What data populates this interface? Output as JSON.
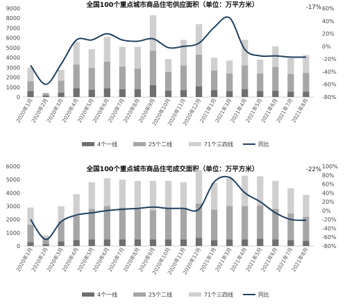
{
  "chart_data": [
    {
      "type": "bar",
      "stacked": true,
      "title": "全国100个重点城市商品住宅供应面积（单位：万平方米）",
      "categories": [
        "2020年1月",
        "2020年2月",
        "2020年3月",
        "2020年4月",
        "2020年5月",
        "2020年6月",
        "2020年7月",
        "2020年8月",
        "2020年9月",
        "2020年10月",
        "2020年11月",
        "2020年12月",
        "2021年1月",
        "2021年3月",
        "2021年4月",
        "2021年5月",
        "2021年6月",
        "2021年7月",
        "2021年8月"
      ],
      "ylim": [
        0,
        9000
      ],
      "yticks": [
        0,
        1000,
        2000,
        3000,
        4000,
        5000,
        6000,
        7000,
        8000,
        9000
      ],
      "y2lim": [
        -80,
        60
      ],
      "y2ticks": [
        -80,
        -60,
        -40,
        -20,
        0,
        20,
        40,
        60
      ],
      "y2_format": "percent",
      "series": [
        {
          "name": "4个一线",
          "kind": "bar",
          "color": "#6f6f6f",
          "values": [
            600,
            150,
            450,
            900,
            750,
            900,
            800,
            800,
            1200,
            650,
            700,
            1100,
            700,
            600,
            800,
            600,
            650,
            550,
            550
          ]
        },
        {
          "name": "25个二线",
          "kind": "bar",
          "color": "#a6a6a6",
          "values": [
            1000,
            250,
            1200,
            2400,
            2200,
            2700,
            2300,
            2100,
            3500,
            1900,
            2500,
            3200,
            2000,
            1800,
            2400,
            1800,
            2400,
            1800,
            1900
          ]
        },
        {
          "name": "71个三四线",
          "kind": "bar",
          "color": "#cfcfcf",
          "values": [
            1400,
            0,
            1100,
            2300,
            1900,
            2500,
            2000,
            2200,
            3600,
            1300,
            2600,
            3100,
            1300,
            1300,
            2600,
            1400,
            2100,
            1600,
            1800
          ]
        },
        {
          "name": "同比",
          "kind": "line",
          "axis": "right",
          "color": "#1f3e5e",
          "values": [
            -30,
            -60,
            -28,
            10,
            10,
            20,
            10,
            8,
            12,
            -2,
            0,
            5,
            30,
            45,
            -5,
            -15,
            -15,
            -17,
            -17
          ]
        }
      ],
      "annotations": [
        {
          "text": "-17%"
        }
      ]
    },
    {
      "type": "bar",
      "stacked": true,
      "title": "全国100个重点城市商品住宅成交面积（单位：万平方米）",
      "categories": [
        "2020年1月",
        "2020年2月",
        "2020年3月",
        "2020年4月",
        "2020年5月",
        "2020年6月",
        "2020年7月",
        "2020年8月",
        "2020年9月",
        "2020年10月",
        "2020年11月",
        "2020年12月",
        "2021年1月",
        "2021年3月",
        "2021年4月",
        "2021年5月",
        "2021年6月",
        "2021年7月",
        "2021年8月"
      ],
      "ylim": [
        0,
        6000
      ],
      "yticks": [
        0,
        1000,
        2000,
        3000,
        4000,
        5000,
        6000
      ],
      "y2lim": [
        -80,
        100
      ],
      "y2ticks": [
        -80,
        -60,
        -40,
        -20,
        0,
        20,
        40,
        60,
        80,
        100
      ],
      "y2_format": "percent",
      "series": [
        {
          "name": "4个一线",
          "kind": "bar",
          "color": "#6f6f6f",
          "values": [
            300,
            150,
            350,
            450,
            500,
            500,
            500,
            500,
            500,
            500,
            500,
            600,
            450,
            500,
            500,
            550,
            500,
            450,
            400
          ]
        },
        {
          "name": "25个二线",
          "kind": "bar",
          "color": "#a6a6a6",
          "values": [
            1300,
            400,
            1500,
            1800,
            2300,
            2500,
            2400,
            2300,
            2200,
            2300,
            2300,
            2600,
            2300,
            2500,
            2500,
            2500,
            2300,
            2000,
            1800
          ]
        },
        {
          "name": "71个三四线",
          "kind": "bar",
          "color": "#cfcfcf",
          "values": [
            1300,
            250,
            1150,
            1650,
            2000,
            2100,
            2100,
            2100,
            2200,
            2100,
            2000,
            2500,
            2000,
            2100,
            2300,
            2200,
            2100,
            1900,
            1650
          ]
        },
        {
          "name": "同比",
          "kind": "line",
          "axis": "right",
          "color": "#1f3e5e",
          "values": [
            -20,
            -65,
            -25,
            -10,
            -5,
            0,
            3,
            5,
            8,
            5,
            5,
            3,
            65,
            75,
            40,
            20,
            -5,
            -20,
            -22
          ]
        }
      ],
      "annotations": [
        {
          "text": "-22%"
        }
      ]
    }
  ]
}
